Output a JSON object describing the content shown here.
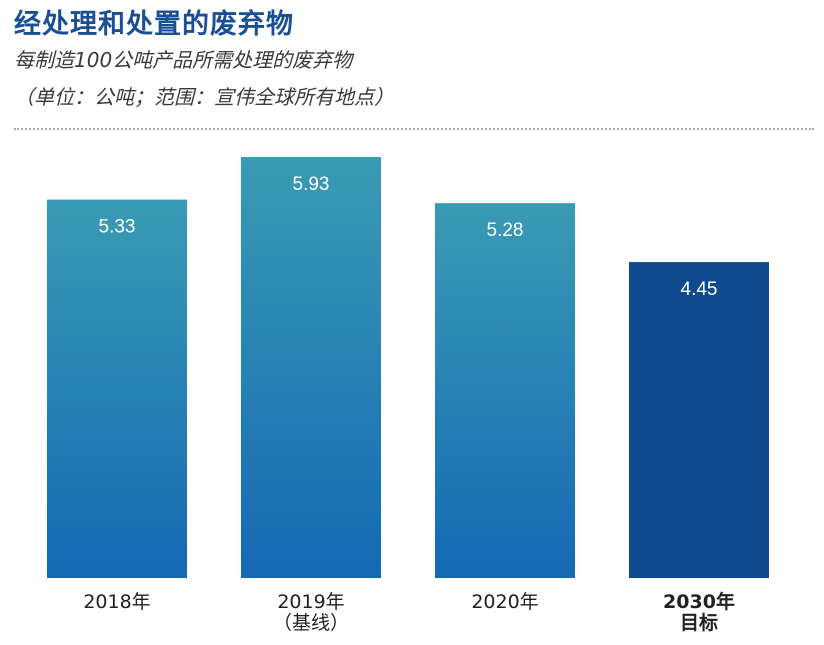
{
  "chart_data": {
    "type": "bar",
    "title": "经处理和处置的废弃物",
    "subtitle": "每制造100公吨产品所需处理的废弃物",
    "unit_note": "（单位：公吨；范围：宣伟全球所有地点）",
    "categories": [
      "2018年",
      "2019年\n（基线）",
      "2020年",
      "2030年\n目标"
    ],
    "values": [
      5.33,
      5.93,
      5.28,
      4.45
    ],
    "value_labels": [
      "5.33",
      "5.93",
      "5.28",
      "4.45"
    ],
    "highlight_index": 3,
    "ylim": [
      0,
      5.93
    ],
    "grid": false,
    "colors": {
      "gradient_top": "#3a9bb4",
      "gradient_bottom": "#1469b3",
      "target_bar": "#0f4a8d",
      "value_label": "#ffffff",
      "title": "#1a4f93"
    }
  }
}
